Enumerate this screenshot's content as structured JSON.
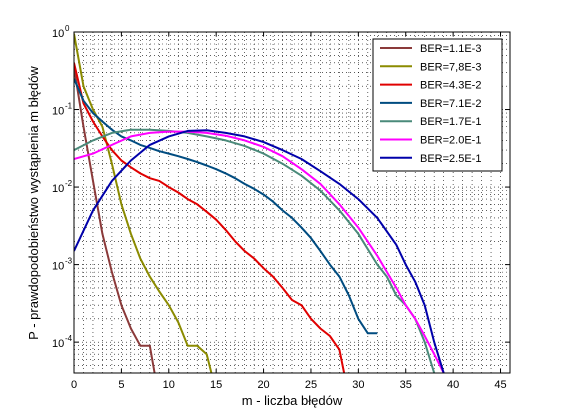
{
  "chart_data": {
    "type": "line",
    "title": "",
    "xlabel": "m - liczba błędów",
    "ylabel": "P - prawdopodobieństwo wystąpienia m błędów",
    "x_scale": "linear",
    "y_scale": "log",
    "xlim": [
      0,
      46
    ],
    "ylim": [
      4e-05,
      1
    ],
    "x_ticks": [
      0,
      5,
      10,
      15,
      20,
      25,
      30,
      35,
      40,
      45
    ],
    "y_ticks": [
      {
        "value": 1,
        "exp": "0"
      },
      {
        "value": 0.1,
        "exp": "-1"
      },
      {
        "value": 0.01,
        "exp": "-2"
      },
      {
        "value": 0.001,
        "exp": "-3"
      },
      {
        "value": 0.0001,
        "exp": "-4"
      }
    ],
    "y_tick_base": "10",
    "grid": true,
    "legend_position": "top-right",
    "series": [
      {
        "name": "BER=1.1E-3",
        "color": "#8b3a3a",
        "x": [
          0,
          1,
          2,
          3,
          4,
          5,
          6,
          7,
          8,
          8.5
        ],
        "y": [
          0.35,
          0.06,
          0.012,
          0.0025,
          0.0008,
          0.0003,
          0.00015,
          9e-05,
          9e-05,
          4e-05
        ]
      },
      {
        "name": "BER=7,8E-3",
        "color": "#8b8b00",
        "x": [
          0,
          1,
          2,
          3,
          4,
          5,
          6,
          7,
          8,
          9,
          10,
          11,
          12,
          13,
          14,
          14.5
        ],
        "y": [
          0.95,
          0.2,
          0.1,
          0.06,
          0.02,
          0.006,
          0.0025,
          0.0012,
          0.0007,
          0.00045,
          0.0003,
          0.00018,
          9e-05,
          9e-05,
          7e-05,
          4e-05
        ]
      },
      {
        "name": "BER=4.3E-2",
        "color": "#e00000",
        "x": [
          0,
          1,
          2,
          3,
          4,
          5,
          6,
          7,
          8,
          9,
          10,
          11,
          12,
          13,
          14,
          15,
          16,
          17,
          18,
          19,
          20,
          21,
          22,
          23,
          24,
          25,
          26,
          27,
          28,
          28.5
        ],
        "y": [
          0.4,
          0.12,
          0.07,
          0.045,
          0.03,
          0.022,
          0.018,
          0.015,
          0.013,
          0.012,
          0.01,
          0.0085,
          0.007,
          0.006,
          0.0048,
          0.0038,
          0.0028,
          0.002,
          0.0015,
          0.0012,
          0.0009,
          0.0007,
          0.0005,
          0.00035,
          0.0003,
          0.0002,
          0.00015,
          0.00012,
          8e-05,
          4e-05
        ]
      },
      {
        "name": "BER=7.1E-2",
        "color": "#004c80",
        "x": [
          0,
          1,
          2,
          3,
          4,
          5,
          6,
          7,
          8,
          9,
          10,
          11,
          12,
          13,
          14,
          15,
          16,
          17,
          18,
          19,
          20,
          21,
          22,
          23,
          24,
          25,
          26,
          27,
          28,
          29,
          30,
          31,
          32
        ],
        "y": [
          0.25,
          0.13,
          0.09,
          0.07,
          0.055,
          0.045,
          0.04,
          0.035,
          0.032,
          0.029,
          0.027,
          0.025,
          0.023,
          0.021,
          0.019,
          0.017,
          0.015,
          0.013,
          0.011,
          0.0095,
          0.008,
          0.0065,
          0.005,
          0.004,
          0.003,
          0.0022,
          0.0015,
          0.001,
          0.0007,
          0.0004,
          0.0002,
          0.00013,
          0.00013
        ]
      },
      {
        "name": "BER=1.7E-1",
        "color": "#4a8a7a",
        "x": [
          0,
          2,
          4,
          6,
          8,
          10,
          12,
          14,
          16,
          18,
          20,
          22,
          24,
          26,
          28,
          30,
          32,
          33,
          34,
          35,
          36,
          37,
          38
        ],
        "y": [
          0.03,
          0.04,
          0.05,
          0.055,
          0.055,
          0.053,
          0.05,
          0.045,
          0.04,
          0.034,
          0.027,
          0.02,
          0.014,
          0.009,
          0.005,
          0.0025,
          0.001,
          0.0007,
          0.0004,
          0.0003,
          0.0002,
          0.0001,
          4e-05
        ]
      },
      {
        "name": "BER=2.0E-1",
        "color": "#ff00ff",
        "x": [
          0,
          2,
          4,
          6,
          8,
          10,
          12,
          14,
          16,
          18,
          20,
          22,
          24,
          26,
          28,
          30,
          32,
          34,
          35,
          36,
          37,
          38,
          39
        ],
        "y": [
          0.023,
          0.027,
          0.035,
          0.045,
          0.05,
          0.052,
          0.052,
          0.05,
          0.046,
          0.04,
          0.033,
          0.025,
          0.017,
          0.011,
          0.006,
          0.003,
          0.0013,
          0.0005,
          0.0003,
          0.0002,
          0.00012,
          7e-05,
          4e-05
        ]
      },
      {
        "name": "BER=2.5E-1",
        "color": "#0000aa",
        "x": [
          0,
          2,
          4,
          6,
          8,
          10,
          12,
          14,
          16,
          18,
          20,
          22,
          24,
          26,
          28,
          30,
          32,
          34,
          35,
          36,
          37,
          38,
          39
        ],
        "y": [
          0.0015,
          0.005,
          0.012,
          0.022,
          0.035,
          0.045,
          0.053,
          0.054,
          0.05,
          0.045,
          0.038,
          0.03,
          0.023,
          0.016,
          0.011,
          0.007,
          0.004,
          0.0018,
          0.001,
          0.0006,
          0.0003,
          0.0001,
          4e-05
        ]
      }
    ]
  }
}
